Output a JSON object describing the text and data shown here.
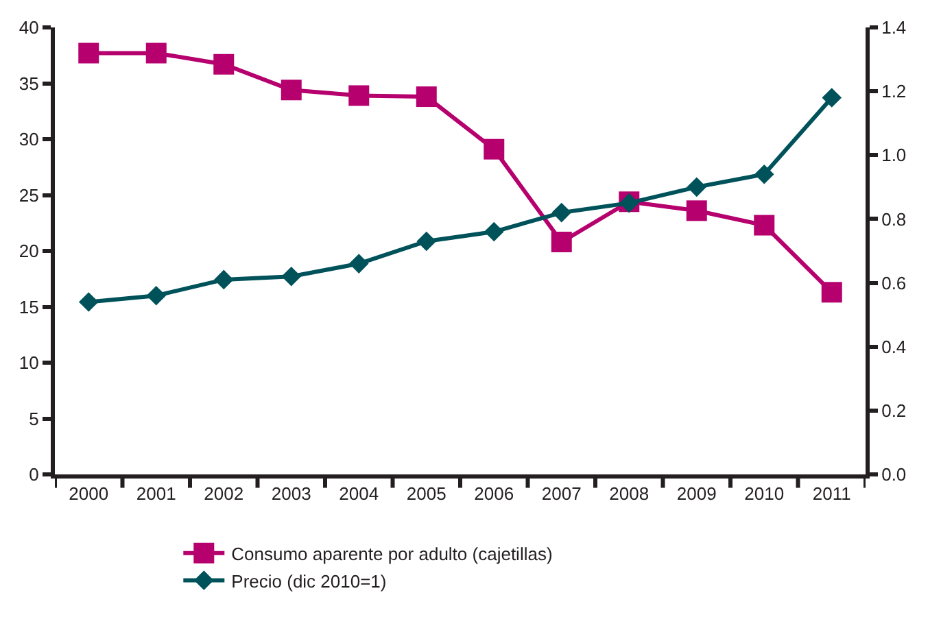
{
  "chart_data": {
    "type": "line",
    "categories": [
      "2000",
      "2001",
      "2002",
      "2003",
      "2004",
      "2005",
      "2006",
      "2007",
      "2008",
      "2009",
      "2010",
      "2011"
    ],
    "series": [
      {
        "name": "Consumo aparente por adulto (cajetillas)",
        "color": "#b5006e",
        "marker": "square",
        "values": [
          37.7,
          37.7,
          36.7,
          34.4,
          33.9,
          33.8,
          29.1,
          20.8,
          24.4,
          23.6,
          22.3,
          16.3
        ]
      },
      {
        "name": "Precio (dic 2010=1)",
        "color": "#00525a",
        "marker": "diamond",
        "axis": "y2",
        "values": [
          0.54,
          0.56,
          0.61,
          0.62,
          0.66,
          0.73,
          0.76,
          0.82,
          0.85,
          0.9,
          0.94,
          1.18
        ]
      }
    ],
    "ylim": [
      0,
      40
    ],
    "yticks": [
      0,
      5,
      10,
      15,
      20,
      25,
      30,
      35,
      40
    ],
    "y2lim": [
      0,
      1.4
    ],
    "y2ticks": [
      {
        "value": 0,
        "label": "0.0"
      },
      {
        "value": 0.2,
        "label": "0.2"
      },
      {
        "value": 0.4,
        "label": "0.4"
      },
      {
        "value": 0.6,
        "label": "0.6"
      },
      {
        "value": 0.8,
        "label": "0.8"
      },
      {
        "value": 1.0,
        "label": "1.0"
      },
      {
        "value": 1.2,
        "label": "1.2"
      },
      {
        "value": 1.4,
        "label": "1.4"
      }
    ],
    "legend": "bottom",
    "line_style": "solid"
  }
}
